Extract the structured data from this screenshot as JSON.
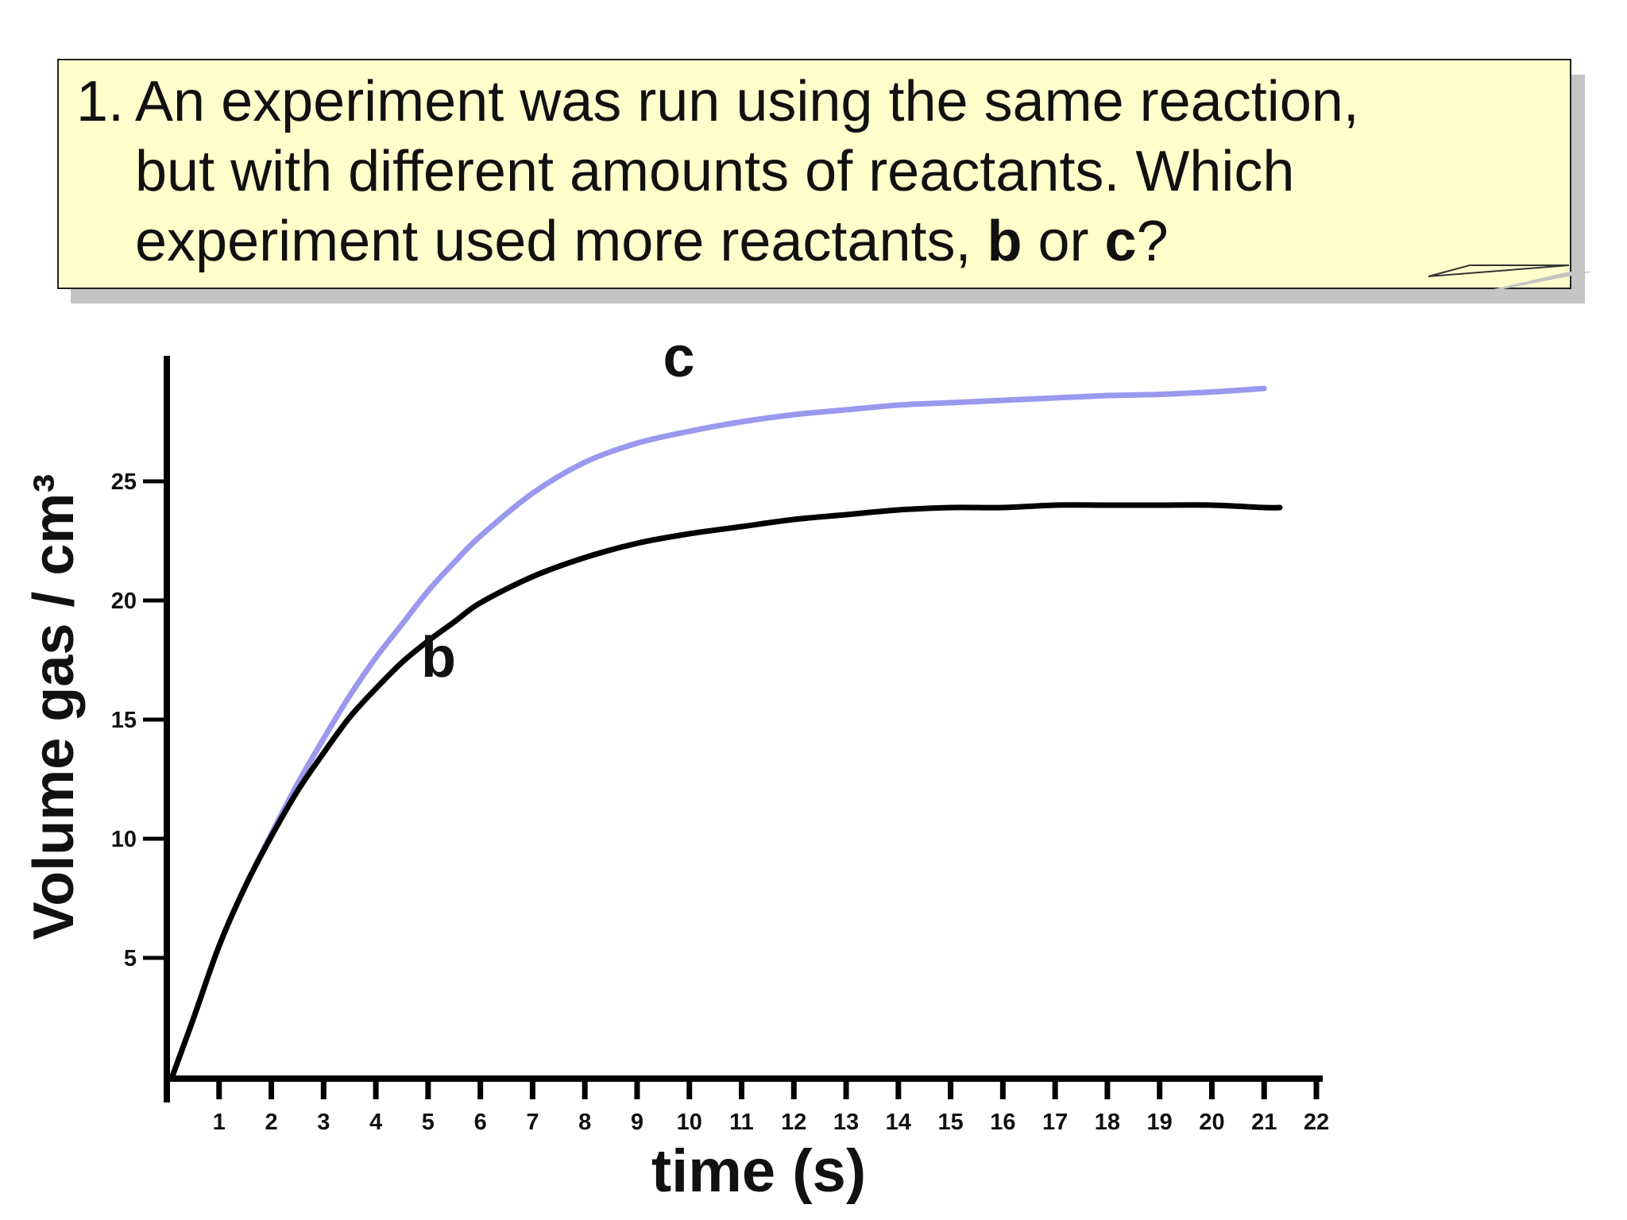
{
  "question": {
    "number": "1.",
    "line1": "An experiment was run using the same reaction,",
    "line2": "but with different amounts of reactants.  Which",
    "line3_prefix": "experiment used more reactants, ",
    "option_b": "b",
    "middle": " or ",
    "option_c": "c",
    "suffix": "?"
  },
  "colors": {
    "note_background": "#ffffcc",
    "curve_b": "#000000",
    "curve_c": "#9999ee",
    "axis": "#000000"
  },
  "chart_data": {
    "type": "line",
    "title": "",
    "xlabel": "time (s)",
    "ylabel": "Volume gas / cm³",
    "xlim": [
      0,
      22
    ],
    "ylim": [
      0,
      30
    ],
    "xticks": [
      1,
      2,
      3,
      4,
      5,
      6,
      7,
      8,
      9,
      10,
      11,
      12,
      13,
      14,
      15,
      16,
      17,
      18,
      19,
      20,
      21,
      22
    ],
    "yticks": [
      5,
      10,
      15,
      20,
      25
    ],
    "grid": false,
    "legend": "none",
    "series": [
      {
        "name": "b",
        "color": "#000000",
        "x": [
          0.1,
          0.5,
          1,
          1.5,
          2,
          2.5,
          3,
          3.5,
          4,
          4.5,
          5,
          5.5,
          6,
          7,
          8,
          9,
          10,
          11,
          12,
          13,
          14,
          15,
          16,
          17,
          18,
          19,
          20,
          21,
          21.3
        ],
        "y": [
          0,
          2.4,
          5.5,
          8.0,
          10.1,
          12.0,
          13.6,
          15.1,
          16.3,
          17.4,
          18.3,
          19.1,
          19.9,
          21.0,
          21.8,
          22.4,
          22.8,
          23.1,
          23.4,
          23.6,
          23.8,
          23.9,
          23.9,
          24.0,
          24.0,
          24.0,
          24.0,
          23.9,
          23.9
        ]
      },
      {
        "name": "c",
        "color": "#9999ee",
        "x": [
          0.1,
          0.5,
          1,
          1.5,
          2,
          2.5,
          3,
          3.5,
          4,
          4.5,
          5,
          5.5,
          6,
          7,
          8,
          9,
          10,
          11,
          12,
          13,
          14,
          15,
          16,
          17,
          18,
          19,
          20,
          21
        ],
        "y": [
          0,
          2.4,
          5.5,
          8.0,
          10.2,
          12.3,
          14.2,
          16.0,
          17.6,
          19.0,
          20.4,
          21.6,
          22.7,
          24.5,
          25.8,
          26.6,
          27.1,
          27.5,
          27.8,
          28.0,
          28.2,
          28.3,
          28.4,
          28.5,
          28.6,
          28.65,
          28.75,
          28.9
        ]
      }
    ],
    "annotations": [
      {
        "text": "c",
        "x": 9.8,
        "y": 29.4
      },
      {
        "text": "b",
        "x": 5.2,
        "y": 16.8
      }
    ]
  }
}
